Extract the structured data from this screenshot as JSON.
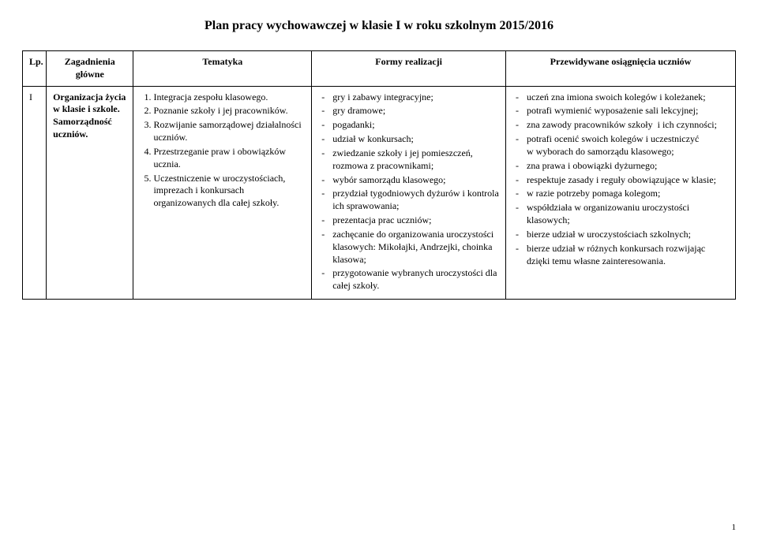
{
  "title": "Plan pracy wychowawczej w klasie I w roku szkolnym 2015/2016",
  "headers": {
    "lp": "Lp.",
    "zag": "Zagadnienia główne",
    "tem": "Tematyka",
    "form": "Formy realizacji",
    "prz": "Przewidywane osiągnięcia uczniów"
  },
  "row": {
    "lp": "I",
    "zag": "Organizacja życia w klasie i szkole. Samorządność uczniów.",
    "tematyka": [
      "Integracja zespołu klasowego.",
      "Poznanie szkoły i jej pracowników.",
      "Rozwijanie samorządowej działalności uczniów.",
      "Przestrzeganie praw i obowiązków ucznia.",
      "Uczestniczenie w uroczystościach, imprezach i konkursach organizowanych dla całej szkoły."
    ],
    "formy": [
      "gry i zabawy integracyjne;",
      "gry dramowe;",
      "pogadanki;",
      "udział w konkursach;",
      "zwiedzanie szkoły i jej pomieszczeń, rozmowa z pracownikami;",
      "wybór samorządu klasowego;",
      "przydział tygodniowych dyżurów i kontrola ich sprawowania;",
      "prezentacja prac uczniów;",
      "zachęcanie do organizowania uroczystości klasowych: Mikołajki, Andrzejki, choinka klasowa;",
      "przygotowanie wybranych uroczystości dla całej szkoły."
    ],
    "osiagniecia": [
      "uczeń zna imiona swoich kolegów i koleżanek;",
      "potrafi wymienić wyposażenie sali lekcyjnej;",
      "zna zawody pracowników szkoły  i ich czynności;",
      "potrafi ocenić swoich kolegów i uczestniczyć w wyborach do samorządu klasowego;",
      "zna prawa i obowiązki dyżurnego;",
      "respektuje zasady i reguły obowiązujące w klasie;",
      "w razie potrzeby pomaga kolegom;",
      "współdziała w organizowaniu uroczystości klasowych;",
      "bierze udział w uroczystościach szkolnych;",
      "bierze udział w różnych konkursach rozwijając dzięki temu własne zainteresowania."
    ]
  },
  "pageNumber": "1"
}
